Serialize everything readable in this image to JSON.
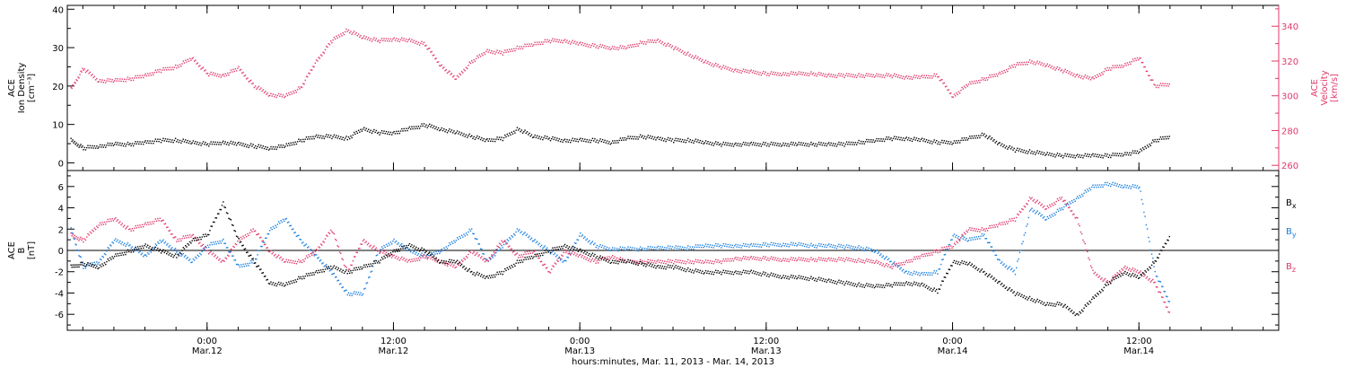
{
  "colors": {
    "black": "#000000",
    "pink": "#e0386a",
    "blue": "#1a7fe0"
  },
  "x_axis": {
    "label": "hours:minutes, Mar. 11, 2013 - Mar. 14, 2013",
    "ticks": [
      {
        "hour": 24,
        "time": "0:00",
        "date": "Mar.12"
      },
      {
        "hour": 36,
        "time": "12:00",
        "date": "Mar.12"
      },
      {
        "hour": 48,
        "time": "0:00",
        "date": "Mar.13"
      },
      {
        "hour": 60,
        "time": "12:00",
        "date": "Mar.13"
      },
      {
        "hour": 72,
        "time": "0:00",
        "date": "Mar.14"
      },
      {
        "hour": 84,
        "time": "12:00",
        "date": "Mar.14"
      }
    ]
  },
  "chart_data": [
    {
      "type": "scatter",
      "panel": "top",
      "ylabel_left": [
        "ACE",
        "Ion Density",
        "[cm⁻³]"
      ],
      "ylabel_right": [
        "ACE",
        "Velocity",
        "[km/s]"
      ],
      "xlim": [
        15,
        93
      ],
      "ylim_left": [
        -2,
        41
      ],
      "ylim_right": [
        257,
        352
      ],
      "yticks_left": [
        "0",
        "10",
        "20",
        "30",
        "40"
      ],
      "yticks_right": [
        "260",
        "280",
        "300",
        "320",
        "340"
      ],
      "series": [
        {
          "axis": "left",
          "color": "black",
          "x": [
            15.2,
            16,
            17,
            18,
            19,
            20,
            21,
            22,
            23,
            24,
            25,
            26,
            27,
            28,
            29,
            30,
            31,
            32,
            33,
            34,
            35,
            36,
            37,
            38,
            39,
            40,
            41,
            42,
            43,
            44,
            45,
            46,
            47,
            48,
            49,
            50,
            51,
            52,
            53,
            54,
            55,
            56,
            57,
            58,
            59,
            60,
            61,
            62,
            63,
            64,
            65,
            66,
            67,
            68,
            69,
            70,
            71,
            72,
            73,
            74,
            75,
            76,
            77,
            78,
            79,
            80,
            81,
            82,
            83,
            84,
            85,
            86
          ],
          "values": [
            6,
            4,
            4.5,
            5,
            5,
            5.5,
            6,
            6,
            5.5,
            5,
            5.5,
            5,
            4.5,
            4,
            4.5,
            6,
            7,
            7,
            6.5,
            9,
            8,
            8,
            9,
            10,
            9,
            8,
            7,
            6,
            6.5,
            9,
            7,
            6.5,
            6,
            6,
            6,
            5.5,
            6.5,
            7,
            6.5,
            6,
            6,
            5.5,
            5,
            5,
            5,
            5,
            5,
            5,
            5,
            5,
            5,
            5.5,
            6,
            6.5,
            6.5,
            6,
            5.5,
            5.5,
            6.5,
            7.5,
            5,
            3.5,
            3,
            2.5,
            2,
            2,
            2,
            2,
            2.5,
            3,
            6,
            7
          ]
        },
        {
          "axis": "right",
          "color": "pink",
          "x": [
            15.2,
            16,
            17,
            18,
            19,
            20,
            21,
            22,
            23,
            24,
            25,
            26,
            27,
            28,
            29,
            30,
            31,
            32,
            33,
            34,
            35,
            36,
            37,
            38,
            39,
            40,
            41,
            42,
            43,
            44,
            45,
            46,
            47,
            48,
            49,
            50,
            51,
            52,
            53,
            54,
            55,
            56,
            57,
            58,
            59,
            60,
            61,
            62,
            63,
            64,
            65,
            66,
            67,
            68,
            69,
            70,
            71,
            72,
            73,
            74,
            75,
            76,
            77,
            78,
            79,
            80,
            81,
            82,
            83,
            84,
            85,
            86
          ],
          "values": [
            304,
            316,
            309,
            309,
            310,
            312,
            315,
            317,
            322,
            313,
            312,
            316,
            306,
            301,
            300,
            305,
            320,
            332,
            338,
            334,
            332,
            333,
            332,
            330,
            318,
            310,
            320,
            326,
            325,
            328,
            330,
            332,
            332,
            330,
            329,
            328,
            328,
            331,
            332,
            328,
            324,
            320,
            317,
            315,
            314,
            313,
            313,
            313,
            313,
            312,
            312,
            312,
            312,
            312,
            311,
            311,
            312,
            300,
            307,
            310,
            313,
            318,
            320,
            318,
            315,
            312,
            310,
            316,
            318,
            322,
            306,
            307
          ]
        }
      ]
    },
    {
      "type": "scatter",
      "panel": "bottom",
      "ylabel_left": [
        "ACE",
        "B",
        "[nT]"
      ],
      "xlim": [
        15,
        93
      ],
      "ylim": [
        -7.5,
        7.5
      ],
      "yticks_left": [
        "6",
        "4",
        "2",
        "0",
        "-2",
        "-4",
        "-6"
      ],
      "legend": [
        {
          "label": "B",
          "sub": "x",
          "color": "black"
        },
        {
          "label": "B",
          "sub": "y",
          "color": "blue"
        },
        {
          "label": "B",
          "sub": "z",
          "color": "pink"
        }
      ],
      "series": [
        {
          "name": "Bx",
          "color": "black",
          "x": [
            15.2,
            16,
            17,
            18,
            19,
            20,
            21,
            22,
            23,
            24,
            25,
            26,
            27,
            28,
            29,
            30,
            31,
            32,
            33,
            34,
            35,
            36,
            37,
            38,
            39,
            40,
            41,
            42,
            43,
            44,
            45,
            46,
            47,
            48,
            49,
            50,
            51,
            52,
            53,
            54,
            55,
            56,
            57,
            58,
            59,
            60,
            61,
            62,
            63,
            64,
            65,
            66,
            67,
            68,
            69,
            70,
            71,
            72,
            73,
            74,
            75,
            76,
            77,
            78,
            79,
            80,
            81,
            82,
            83,
            84,
            85,
            86
          ],
          "values": [
            -1.5,
            -1.2,
            -1.5,
            -0.5,
            0,
            0.5,
            0,
            -0.5,
            1,
            1.5,
            4.5,
            1,
            -1,
            -3,
            -3.2,
            -2.5,
            -2,
            -1.5,
            -2,
            -1.5,
            -1,
            0,
            0.5,
            0,
            -1,
            -1,
            -2,
            -2.5,
            -2,
            -1,
            -0.5,
            0,
            0.5,
            0,
            -0.5,
            -1,
            -1,
            -1.2,
            -1.5,
            -1.5,
            -1.8,
            -2,
            -2,
            -2,
            -2,
            -2.2,
            -2.4,
            -2.5,
            -2.6,
            -2.8,
            -3,
            -3.2,
            -3.3,
            -3.2,
            -3,
            -3.2,
            -3.8,
            -1,
            -1.2,
            -2,
            -3,
            -4,
            -4.5,
            -5,
            -5,
            -6,
            -4.5,
            -3,
            -2,
            -2.5,
            -1,
            1.5
          ]
        },
        {
          "name": "By",
          "color": "blue",
          "x": [
            15.2,
            16,
            17,
            18,
            19,
            20,
            21,
            22,
            23,
            24,
            25,
            26,
            27,
            28,
            29,
            30,
            31,
            32,
            33,
            34,
            35,
            36,
            37,
            38,
            39,
            40,
            41,
            42,
            43,
            44,
            45,
            46,
            47,
            48,
            49,
            50,
            51,
            52,
            53,
            54,
            55,
            56,
            57,
            58,
            59,
            60,
            61,
            62,
            63,
            64,
            65,
            66,
            67,
            68,
            69,
            70,
            71,
            72,
            73,
            74,
            75,
            76,
            77,
            78,
            79,
            80,
            81,
            82,
            83,
            84,
            85,
            86
          ],
          "values": [
            2,
            -1.5,
            -1,
            1,
            0.5,
            -0.5,
            1,
            0,
            -1,
            0.5,
            1,
            -1.5,
            -1,
            2,
            3,
            1,
            -0.5,
            -2,
            -4,
            -4,
            0,
            1,
            0,
            -0.5,
            0,
            1,
            2,
            -1,
            0.5,
            2,
            1,
            0,
            -1,
            1.5,
            0.5,
            0.2,
            0.2,
            0.2,
            0.3,
            0.3,
            0.3,
            0.5,
            0.5,
            0.5,
            0.5,
            0.6,
            0.6,
            0.6,
            0.5,
            0.5,
            0.4,
            0.3,
            0,
            -1,
            -2,
            -2.2,
            -2,
            1.5,
            1,
            1.5,
            -1,
            -2,
            4,
            3,
            4,
            5,
            6,
            6.3,
            6.1,
            6,
            -2,
            -5
          ]
        },
        {
          "name": "Bz",
          "color": "pink",
          "x": [
            15.2,
            16,
            17,
            18,
            19,
            20,
            21,
            22,
            23,
            24,
            25,
            26,
            27,
            28,
            29,
            30,
            31,
            32,
            33,
            34,
            35,
            36,
            37,
            38,
            39,
            40,
            41,
            42,
            43,
            44,
            45,
            46,
            47,
            48,
            49,
            50,
            51,
            52,
            53,
            54,
            55,
            56,
            57,
            58,
            59,
            60,
            61,
            62,
            63,
            64,
            65,
            66,
            67,
            68,
            69,
            70,
            71,
            72,
            73,
            74,
            75,
            76,
            77,
            78,
            79,
            80,
            81,
            82,
            83,
            84,
            85,
            86
          ],
          "values": [
            1.5,
            1,
            2.5,
            3,
            2,
            2.5,
            3,
            1,
            1.5,
            0,
            -1,
            1,
            2,
            0,
            -1,
            -1,
            0,
            2,
            -2,
            1,
            0,
            -0.5,
            -1,
            -0.5,
            -1,
            -1.5,
            0,
            -1,
            1,
            -0.5,
            0,
            -2,
            0,
            -0.5,
            -1,
            -0.5,
            -1,
            -1,
            -1,
            -1,
            -1,
            -1,
            -1,
            -0.7,
            -0.7,
            -0.7,
            -0.8,
            -0.8,
            -0.8,
            -0.8,
            -0.8,
            -0.9,
            -1,
            -1.5,
            -1,
            -0.5,
            0,
            0.5,
            2,
            2,
            2.5,
            3,
            5,
            4,
            5,
            3,
            -2,
            -3,
            -1.5,
            -2,
            -3,
            -6
          ]
        }
      ]
    }
  ]
}
